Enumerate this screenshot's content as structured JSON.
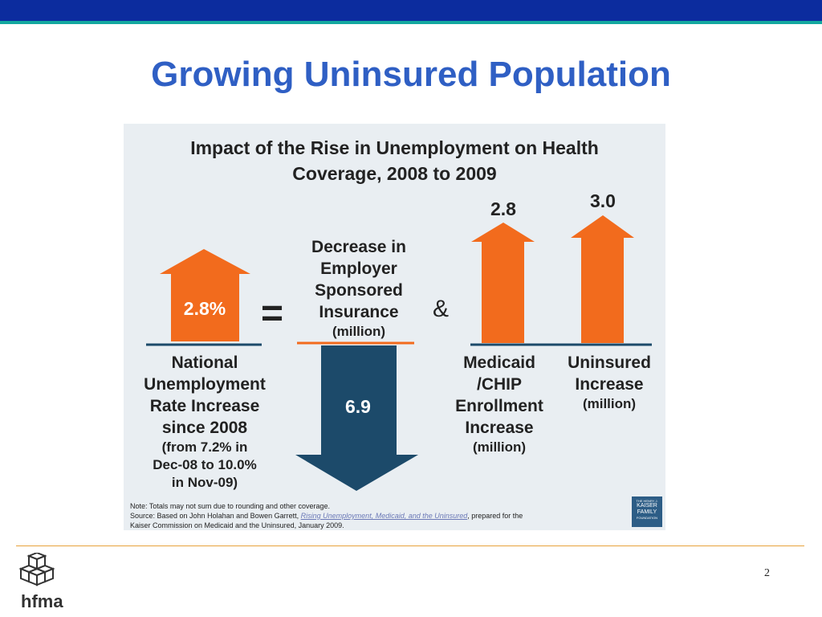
{
  "slide": {
    "title": "Growing Uninsured Population",
    "page_number": "2",
    "logo_text": "hfma"
  },
  "colors": {
    "top_band": "#0c2c9e",
    "teal_rule": "#14a8a0",
    "title": "#2f5fc4",
    "up_arrow": "#f26b1d",
    "down_arrow": "#1c4a6a",
    "panel": "#e9eef2",
    "footer_rule": "#e8a33c"
  },
  "chart_data": {
    "type": "bar",
    "title_line1": "Impact of the Rise in Unemployment on Health",
    "title_line2": "Coverage, 2008 to 2009",
    "grid": false,
    "equals_symbol": "=",
    "and_symbol": "&",
    "unemployment": {
      "value": 2.8,
      "label": "2.8%",
      "caption_lines": [
        "National",
        "Unemployment",
        "Rate Increase",
        "since 2008"
      ],
      "sub_lines": [
        "(from 7.2% in",
        "Dec-08 to 10.0%",
        "in Nov-09)"
      ]
    },
    "employer": {
      "value": -6.9,
      "label": "6.9",
      "caption_lines": [
        "Decrease in",
        "Employer",
        "Sponsored",
        "Insurance"
      ],
      "sub_lines": [
        "(million)"
      ]
    },
    "medicaid": {
      "value": 2.8,
      "label": "2.8",
      "caption_lines": [
        "Medicaid",
        "/CHIP",
        "Enrollment",
        "Increase"
      ],
      "sub_lines": [
        "(million)"
      ]
    },
    "uninsured": {
      "value": 3.0,
      "label": "3.0",
      "caption_lines": [
        "Uninsured",
        "Increase"
      ],
      "sub_lines": [
        "(million)"
      ]
    },
    "note": "Note: Totals may not sum due to rounding and other coverage.",
    "source_prefix": "Source: Based on John Holahan and Bowen Garrett,",
    "source_link": "Rising Unemployment, Medicaid, and the Uninsured",
    "source_suffix": ", prepared for the",
    "source_line3": "Kaiser Commission on Medicaid and the Uninsured, January 2009.",
    "org_logo": {
      "line1": "THE HENRY J.",
      "line2": "KAISER",
      "line3": "FAMILY",
      "line4": "FOUNDATION"
    }
  }
}
